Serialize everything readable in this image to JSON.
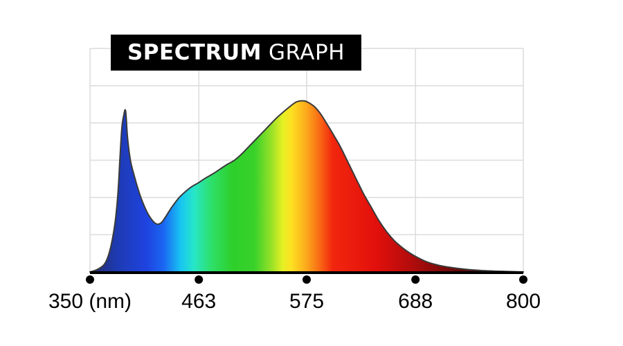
{
  "title": {
    "bold": "SPECTRUM",
    "light": "GRAPH"
  },
  "chart_data": {
    "type": "area",
    "title": "SPECTRUM GRAPH",
    "xlabel": "",
    "ylabel": "",
    "x_ticks": [
      350,
      463,
      575,
      688,
      800
    ],
    "x_tick_labels": [
      "350 (nm)",
      "463",
      "575",
      "688",
      "800"
    ],
    "xlim": [
      350,
      800
    ],
    "ylim": [
      0,
      1
    ],
    "grid": true,
    "grid_rows": 6,
    "series": [
      {
        "x": [
          350,
          357,
          364,
          368,
          372,
          376,
          379,
          381,
          383,
          385,
          387,
          389,
          392,
          396,
          400,
          404,
          409,
          414,
          419,
          424,
          429,
          435,
          442,
          448,
          455,
          463,
          470,
          478,
          485,
          492,
          500,
          508,
          517,
          526,
          535,
          544,
          552,
          559,
          564,
          568,
          573,
          578,
          583,
          589,
          595,
          602,
          610,
          618,
          626,
          634,
          642,
          650,
          658,
          666,
          674,
          682,
          690,
          700,
          712,
          725,
          740,
          755,
          770,
          785,
          800
        ],
        "y": [
          0.0,
          0.01,
          0.03,
          0.06,
          0.12,
          0.22,
          0.35,
          0.5,
          0.64,
          0.7,
          0.72,
          0.6,
          0.5,
          0.43,
          0.37,
          0.32,
          0.27,
          0.235,
          0.215,
          0.22,
          0.25,
          0.29,
          0.33,
          0.355,
          0.38,
          0.4,
          0.42,
          0.44,
          0.46,
          0.48,
          0.5,
          0.53,
          0.57,
          0.61,
          0.65,
          0.69,
          0.72,
          0.745,
          0.76,
          0.765,
          0.765,
          0.755,
          0.74,
          0.71,
          0.67,
          0.62,
          0.56,
          0.49,
          0.42,
          0.35,
          0.29,
          0.23,
          0.18,
          0.14,
          0.11,
          0.085,
          0.065,
          0.045,
          0.03,
          0.02,
          0.012,
          0.007,
          0.004,
          0.002,
          0.0
        ]
      }
    ]
  }
}
